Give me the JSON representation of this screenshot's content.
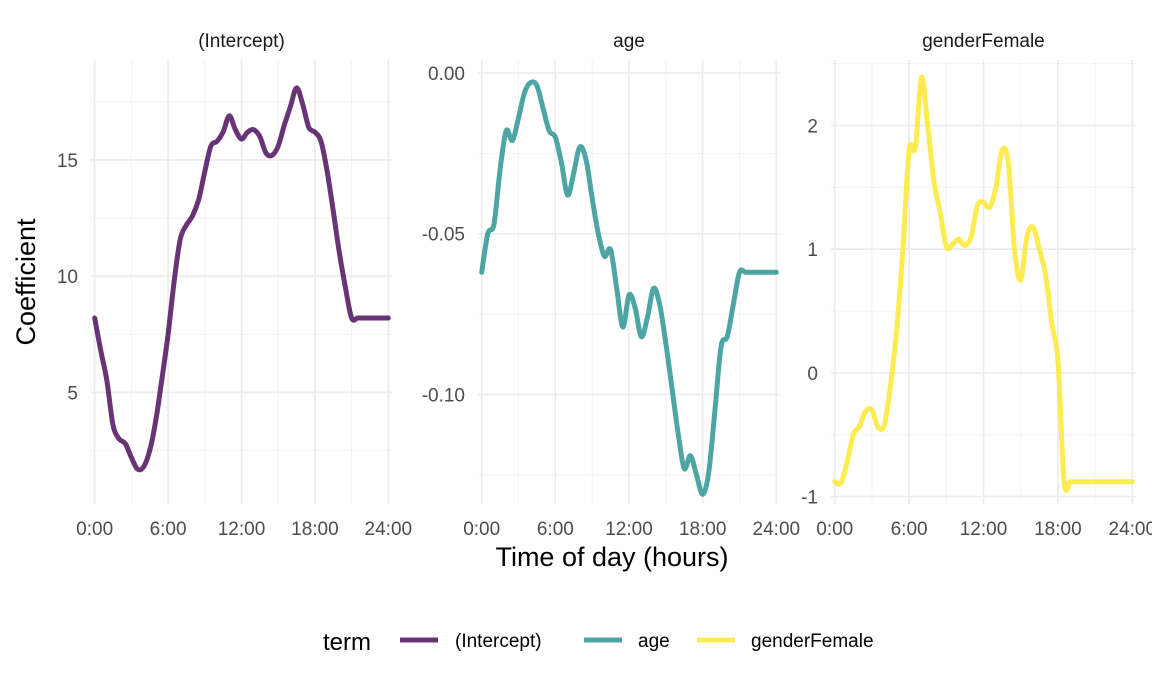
{
  "chart_data": {
    "type": "line",
    "xlabel": "Time of day (hours)",
    "ylabel": "Coefficient",
    "legend": {
      "title": "term",
      "position": "bottom"
    },
    "grid": true,
    "x_tick_labels": [
      "0:00",
      "6:00",
      "12:00",
      "18:00",
      "24:00"
    ],
    "panels": [
      {
        "name": "(Intercept)",
        "color": "#440154",
        "xlim": [
          -0.3,
          24.3
        ],
        "ylim": [
          0.2,
          19.3
        ],
        "yticks": [
          5,
          10,
          15
        ],
        "ytick_labels": [
          "5",
          "10",
          "15"
        ],
        "x": [
          0,
          0.5,
          1,
          1.5,
          2,
          2.5,
          3,
          3.5,
          4,
          4.5,
          5,
          5.5,
          6,
          6.5,
          7,
          7.5,
          8,
          8.5,
          9,
          9.5,
          10,
          10.5,
          11,
          11.5,
          12,
          12.5,
          13,
          13.5,
          14,
          14.5,
          15,
          15.5,
          16,
          16.5,
          17,
          17.5,
          18,
          18.5,
          19,
          19.5,
          20,
          20.5,
          21,
          21.5,
          22,
          22.5,
          23,
          23.5,
          24
        ],
        "y": [
          8.2,
          6.8,
          5.5,
          3.6,
          3.0,
          2.8,
          2.2,
          1.7,
          1.8,
          2.5,
          3.8,
          5.6,
          7.5,
          9.8,
          11.6,
          12.2,
          12.6,
          13.3,
          14.5,
          15.6,
          15.8,
          16.2,
          16.9,
          16.3,
          15.9,
          16.2,
          16.3,
          16.0,
          15.3,
          15.2,
          15.6,
          16.5,
          17.3,
          18.1,
          17.4,
          16.4,
          16.2,
          15.8,
          14.5,
          12.8,
          11.0,
          9.5,
          8.2,
          8.2,
          8.2,
          8.2,
          8.2,
          8.2,
          8.2
        ]
      },
      {
        "name": "age",
        "color": "#21908C",
        "xlim": [
          -0.3,
          24.3
        ],
        "ylim": [
          -0.134,
          0.004
        ],
        "yticks": [
          -0.1,
          -0.05,
          0.0
        ],
        "ytick_labels": [
          "-0.10",
          "-0.05",
          "0.00"
        ],
        "x": [
          0,
          0.5,
          1,
          1.5,
          2,
          2.5,
          3,
          3.5,
          4,
          4.5,
          5,
          5.5,
          6,
          6.5,
          7,
          7.5,
          8,
          8.5,
          9,
          9.5,
          10,
          10.5,
          11,
          11.5,
          12,
          12.5,
          13,
          13.5,
          14,
          14.5,
          15,
          15.5,
          16,
          16.5,
          17,
          17.5,
          18,
          18.5,
          19,
          19.5,
          20,
          20.5,
          21,
          21.5,
          22,
          22.5,
          23,
          23.5,
          24
        ],
        "y": [
          -0.062,
          -0.05,
          -0.047,
          -0.03,
          -0.018,
          -0.021,
          -0.014,
          -0.006,
          -0.003,
          -0.004,
          -0.011,
          -0.018,
          -0.02,
          -0.028,
          -0.038,
          -0.031,
          -0.023,
          -0.027,
          -0.039,
          -0.05,
          -0.057,
          -0.055,
          -0.067,
          -0.079,
          -0.069,
          -0.073,
          -0.082,
          -0.076,
          -0.067,
          -0.072,
          -0.084,
          -0.098,
          -0.112,
          -0.123,
          -0.119,
          -0.125,
          -0.131,
          -0.124,
          -0.105,
          -0.085,
          -0.082,
          -0.072,
          -0.062,
          -0.062,
          -0.062,
          -0.062,
          -0.062,
          -0.062,
          -0.062
        ]
      },
      {
        "name": "genderFemale",
        "color": "#FDE725",
        "xlim": [
          -0.3,
          24.3
        ],
        "ylim": [
          -1.06,
          2.53
        ],
        "yticks": [
          -1,
          0,
          1,
          2
        ],
        "ytick_labels": [
          "-1",
          "0",
          "1",
          "2"
        ],
        "x": [
          0,
          0.5,
          1,
          1.5,
          2,
          2.5,
          3,
          3.5,
          4,
          4.5,
          5,
          5.5,
          6,
          6.5,
          7,
          7.5,
          8,
          8.5,
          9,
          9.5,
          10,
          10.5,
          11,
          11.5,
          12,
          12.5,
          13,
          13.5,
          14,
          14.5,
          15,
          15.5,
          16,
          16.5,
          17,
          17.5,
          18,
          18.5,
          19,
          19.5,
          20,
          20.5,
          21,
          21.5,
          22,
          22.5,
          23,
          23.5,
          24
        ],
        "y": [
          -0.88,
          -0.89,
          -0.72,
          -0.5,
          -0.43,
          -0.31,
          -0.3,
          -0.44,
          -0.42,
          -0.1,
          0.35,
          1.0,
          1.8,
          1.82,
          2.39,
          2.0,
          1.55,
          1.3,
          1.02,
          1.04,
          1.08,
          1.03,
          1.1,
          1.35,
          1.38,
          1.34,
          1.5,
          1.8,
          1.7,
          1.0,
          0.75,
          1.1,
          1.18,
          1.0,
          0.8,
          0.4,
          0.1,
          -0.88,
          -0.88,
          -0.88,
          -0.88,
          -0.88,
          -0.88,
          -0.88,
          -0.88,
          -0.88,
          -0.88,
          -0.88,
          -0.88
        ]
      }
    ]
  }
}
